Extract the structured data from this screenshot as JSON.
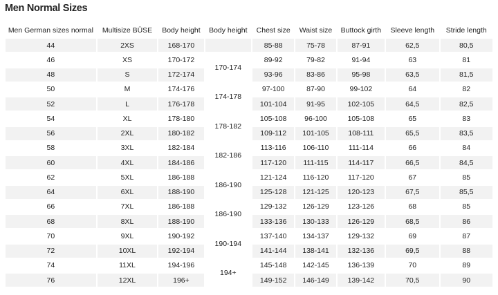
{
  "header": {
    "title": "Men Normal Sizes"
  },
  "table": {
    "columns": [
      "Men German sizes normal",
      "Multisize BÜSE",
      "Body height",
      "Body height",
      "Chest size",
      "Waist size",
      "Buttock girth",
      "Sleeve length",
      "Stride length"
    ],
    "rows": [
      [
        "44",
        "2XS",
        "168-170",
        "85-88",
        "75-78",
        "87-91",
        "62,5",
        "80,5"
      ],
      [
        "46",
        "XS",
        "170-172",
        "89-92",
        "79-82",
        "91-94",
        "63",
        "81"
      ],
      [
        "48",
        "S",
        "172-174",
        "93-96",
        "83-86",
        "95-98",
        "63,5",
        "81,5"
      ],
      [
        "50",
        "M",
        "174-176",
        "97-100",
        "87-90",
        "99-102",
        "64",
        "82"
      ],
      [
        "52",
        "L",
        "176-178",
        "101-104",
        "91-95",
        "102-105",
        "64,5",
        "82,5"
      ],
      [
        "54",
        "XL",
        "178-180",
        "105-108",
        "96-100",
        "105-108",
        "65",
        "83"
      ],
      [
        "56",
        "2XL",
        "180-182",
        "109-112",
        "101-105",
        "108-111",
        "65,5",
        "83,5"
      ],
      [
        "58",
        "3XL",
        "182-184",
        "113-116",
        "106-110",
        "111-114",
        "66",
        "84"
      ],
      [
        "60",
        "4XL",
        "184-186",
        "117-120",
        "111-115",
        "114-117",
        "66,5",
        "84,5"
      ],
      [
        "62",
        "5XL",
        "186-188",
        "121-124",
        "116-120",
        "117-120",
        "67",
        "85"
      ],
      [
        "64",
        "6XL",
        "188-190",
        "125-128",
        "121-125",
        "120-123",
        "67,5",
        "85,5"
      ],
      [
        "66",
        "7XL",
        "186-188",
        "129-132",
        "126-129",
        "123-126",
        "68",
        "85"
      ],
      [
        "68",
        "8XL",
        "188-190",
        "133-136",
        "130-133",
        "126-129",
        "68,5",
        "86"
      ],
      [
        "70",
        "9XL",
        "190-192",
        "137-140",
        "134-137",
        "129-132",
        "69",
        "87"
      ],
      [
        "72",
        "10XL",
        "192-194",
        "141-144",
        "138-141",
        "132-136",
        "69,5",
        "88"
      ],
      [
        "74",
        "11XL",
        "194-196",
        "145-148",
        "142-145",
        "136-139",
        "70",
        "89"
      ],
      [
        "76",
        "12XL",
        "196+",
        "149-152",
        "146-149",
        "139-142",
        "70,5",
        "90"
      ]
    ],
    "merged_body_height": [
      {
        "text": "170-174",
        "from": 1,
        "to": 2
      },
      {
        "text": "174-178",
        "from": 3,
        "to": 4
      },
      {
        "text": "178-182",
        "from": 5,
        "to": 6
      },
      {
        "text": "182-186",
        "from": 7,
        "to": 8
      },
      {
        "text": "186-190",
        "from": 9,
        "to": 10
      },
      {
        "text": "186-190",
        "from": 11,
        "to": 12
      },
      {
        "text": "190-194",
        "from": 13,
        "to": 14
      },
      {
        "text": "194+",
        "from": 15,
        "to": 16
      }
    ]
  }
}
